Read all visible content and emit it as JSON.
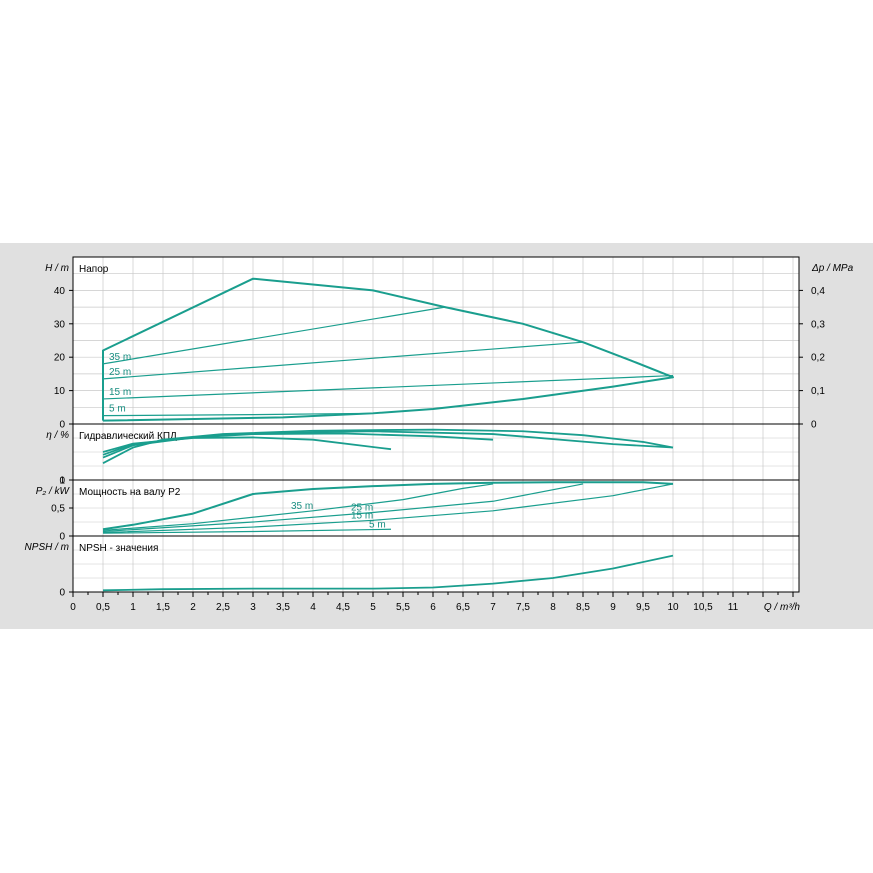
{
  "colors": {
    "curve": "#1a9e8e",
    "background": "#e0e0e0",
    "plot": "#ffffff",
    "grid": "#c8c8c8",
    "axis": "#000000"
  },
  "chart_data": [
    {
      "id": "head",
      "type": "line",
      "title": "Напор",
      "ylabel": "H / m",
      "ylabel_right": "Δp / MPa",
      "xlim": [
        0,
        12.1
      ],
      "ylim": [
        0,
        50
      ],
      "yticks": [
        0,
        10,
        20,
        30,
        40
      ],
      "yticks_right": [
        0,
        0.1,
        0.2,
        0.3,
        0.4
      ],
      "envelope": [
        [
          0.5,
          1
        ],
        [
          0.5,
          22
        ],
        [
          3,
          43.5
        ],
        [
          5,
          40
        ],
        [
          6.2,
          35
        ],
        [
          7.5,
          30
        ],
        [
          8.5,
          24.5
        ],
        [
          9.3,
          19
        ],
        [
          10,
          14
        ],
        [
          9,
          11.2
        ],
        [
          7.5,
          7.5
        ],
        [
          6,
          4.5
        ],
        [
          5,
          3.2
        ],
        [
          3.5,
          2
        ],
        [
          0.5,
          1
        ]
      ],
      "series": [
        {
          "name": "35 m",
          "points": [
            [
              0.5,
              18
            ],
            [
              6.2,
              35
            ]
          ]
        },
        {
          "name": "25 m",
          "points": [
            [
              0.5,
              13.5
            ],
            [
              8.5,
              24.5
            ]
          ]
        },
        {
          "name": "15 m",
          "points": [
            [
              0.5,
              7.5
            ],
            [
              10,
              14.5
            ]
          ]
        },
        {
          "name": "5 m",
          "points": [
            [
              0.5,
              2.5
            ],
            [
              3,
              2.8
            ],
            [
              5,
              3.2
            ]
          ]
        }
      ]
    },
    {
      "id": "efficiency",
      "type": "line",
      "title": "Гидравлический КПД",
      "ylabel": "η / %",
      "ylim": [
        0,
        100
      ],
      "yticks": [
        0
      ],
      "series": [
        {
          "name": "",
          "points": [
            [
              0.5,
              30
            ],
            [
              1,
              58
            ],
            [
              1.5,
              72
            ],
            [
              2.5,
              82
            ],
            [
              4,
              88
            ],
            [
              6,
              90
            ],
            [
              7.5,
              87
            ],
            [
              8.5,
              80
            ],
            [
              9.5,
              68
            ],
            [
              10,
              58
            ]
          ]
        },
        {
          "name": "",
          "points": [
            [
              0.5,
              40
            ],
            [
              1,
              62
            ],
            [
              2,
              76
            ],
            [
              3,
              83
            ],
            [
              5,
              87
            ],
            [
              7,
              82
            ],
            [
              9,
              64
            ],
            [
              10,
              58
            ]
          ]
        },
        {
          "name": "",
          "points": [
            [
              0.5,
              45
            ],
            [
              1,
              64
            ],
            [
              2,
              76
            ],
            [
              3,
              82
            ],
            [
              4.5,
              83
            ],
            [
              6,
              78
            ],
            [
              7,
              72
            ]
          ]
        },
        {
          "name": "",
          "points": [
            [
              0.5,
              50
            ],
            [
              1,
              65
            ],
            [
              2,
              75
            ],
            [
              3,
              76
            ],
            [
              4,
              72
            ],
            [
              5.3,
              55
            ]
          ]
        }
      ]
    },
    {
      "id": "power",
      "type": "line",
      "title": "Мощность на валу P2",
      "ylabel": "P₂ / kW",
      "ylim": [
        0,
        1.0
      ],
      "yticks": [
        0,
        0.5,
        1
      ],
      "ytick_labels": [
        "0",
        "0,5",
        "1"
      ],
      "envelope": [
        [
          0.5,
          0.12
        ],
        [
          1,
          0.2
        ],
        [
          2,
          0.4
        ],
        [
          3,
          0.75
        ],
        [
          4,
          0.84
        ],
        [
          5,
          0.89
        ],
        [
          6,
          0.93
        ],
        [
          7,
          0.95
        ],
        [
          8,
          0.96
        ],
        [
          9,
          0.96
        ],
        [
          9.5,
          0.96
        ],
        [
          10,
          0.93
        ]
      ],
      "series": [
        {
          "name": "35 m",
          "points": [
            [
              0.5,
              0.1
            ],
            [
              2,
              0.22
            ],
            [
              4,
              0.45
            ],
            [
              5.5,
              0.65
            ],
            [
              6.5,
              0.85
            ],
            [
              7,
              0.93
            ]
          ]
        },
        {
          "name": "25 m",
          "points": [
            [
              0.5,
              0.08
            ],
            [
              3,
              0.25
            ],
            [
              5,
              0.42
            ],
            [
              7,
              0.62
            ],
            [
              8.5,
              0.93
            ]
          ]
        },
        {
          "name": "15 m",
          "points": [
            [
              0.5,
              0.06
            ],
            [
              3,
              0.16
            ],
            [
              5,
              0.28
            ],
            [
              7,
              0.45
            ],
            [
              9,
              0.72
            ],
            [
              10,
              0.93
            ]
          ]
        },
        {
          "name": "5 m",
          "points": [
            [
              0.5,
              0.05
            ],
            [
              3,
              0.08
            ],
            [
              5.3,
              0.12
            ]
          ]
        }
      ]
    },
    {
      "id": "npsh",
      "type": "line",
      "title": "NPSH - значения",
      "ylabel": "NPSH / m",
      "ylim": [
        0,
        10
      ],
      "yticks": [
        0
      ],
      "series": [
        {
          "name": "",
          "points": [
            [
              0.5,
              0.3
            ],
            [
              1.5,
              0.5
            ],
            [
              3,
              0.6
            ],
            [
              5,
              0.6
            ],
            [
              6,
              0.8
            ],
            [
              7,
              1.5
            ],
            [
              8,
              2.5
            ],
            [
              9,
              4.2
            ],
            [
              10,
              6.5
            ]
          ]
        }
      ]
    }
  ],
  "x_axis": {
    "label": "Q / m³/h",
    "xlim": [
      0,
      12.1
    ],
    "ticks": [
      0,
      0.5,
      1,
      1.5,
      2,
      2.5,
      3,
      3.5,
      4,
      4.5,
      5,
      5.5,
      6,
      6.5,
      7,
      7.5,
      8,
      8.5,
      9,
      9.5,
      10,
      10.5,
      11
    ],
    "tick_labels": [
      "0",
      "0,5",
      "1",
      "1,5",
      "2",
      "2,5",
      "3",
      "3,5",
      "4",
      "4,5",
      "5",
      "5,5",
      "6",
      "6,5",
      "7",
      "7,5",
      "8",
      "8,5",
      "9",
      "9,5",
      "10",
      "10,5",
      "11"
    ]
  }
}
